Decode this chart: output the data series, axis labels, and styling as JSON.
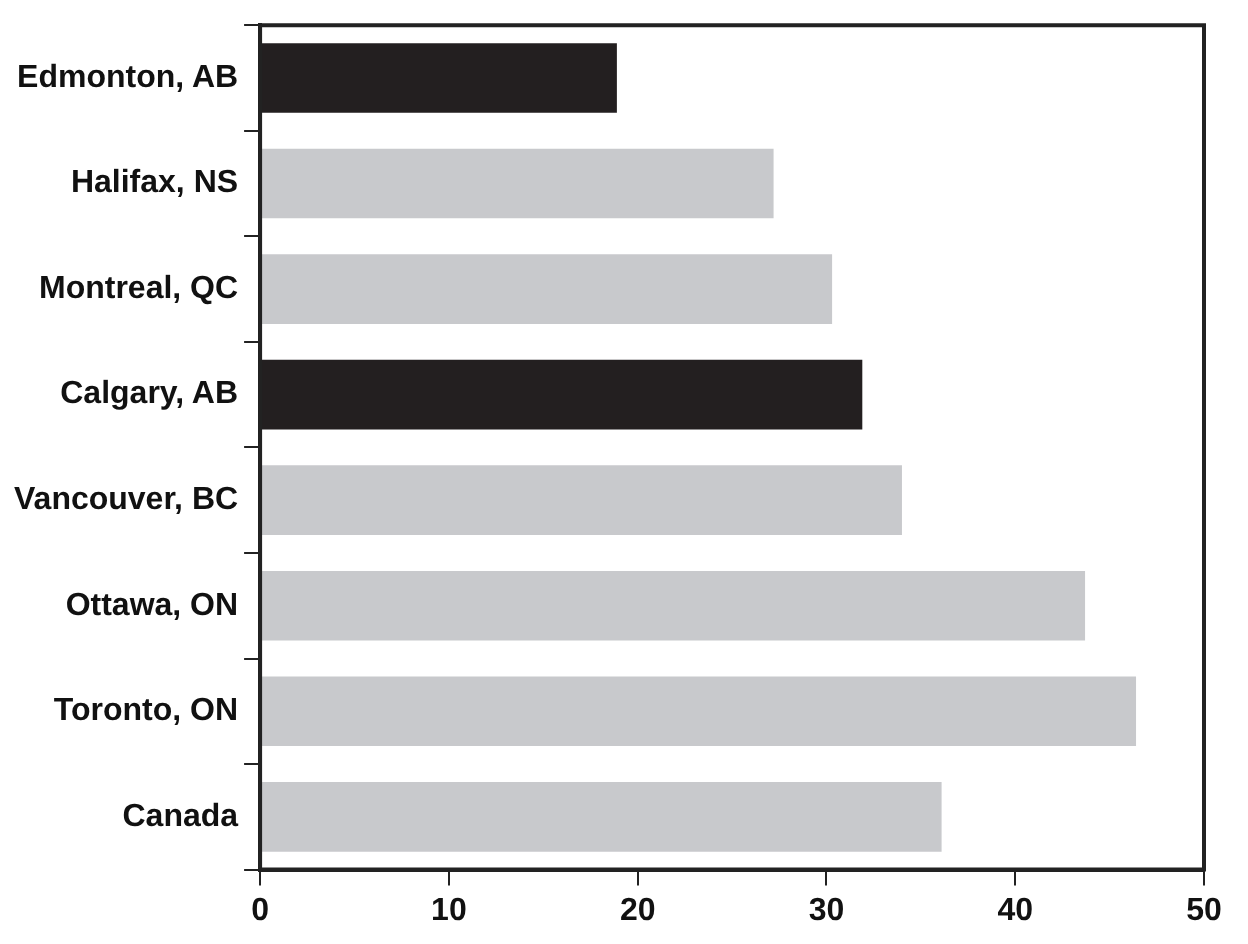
{
  "chart_data": {
    "type": "bar",
    "orientation": "horizontal",
    "categories": [
      "Edmonton, AB",
      "Halifax, NS",
      "Montreal, QC",
      "Calgary, AB",
      "Vancouver, BC",
      "Ottawa, ON",
      "Toronto, ON",
      "Canada"
    ],
    "values": [
      18.9,
      27.2,
      30.3,
      31.9,
      34.0,
      43.7,
      46.4,
      36.1
    ],
    "colors": [
      "#231f20",
      "#c8c9cc",
      "#c8c9cc",
      "#231f20",
      "#c8c9cc",
      "#c8c9cc",
      "#c8c9cc",
      "#c8c9cc"
    ],
    "xlim": [
      0,
      50
    ],
    "xticks": [
      0,
      10,
      20,
      30,
      40,
      50
    ],
    "grid": false,
    "legend": false
  }
}
